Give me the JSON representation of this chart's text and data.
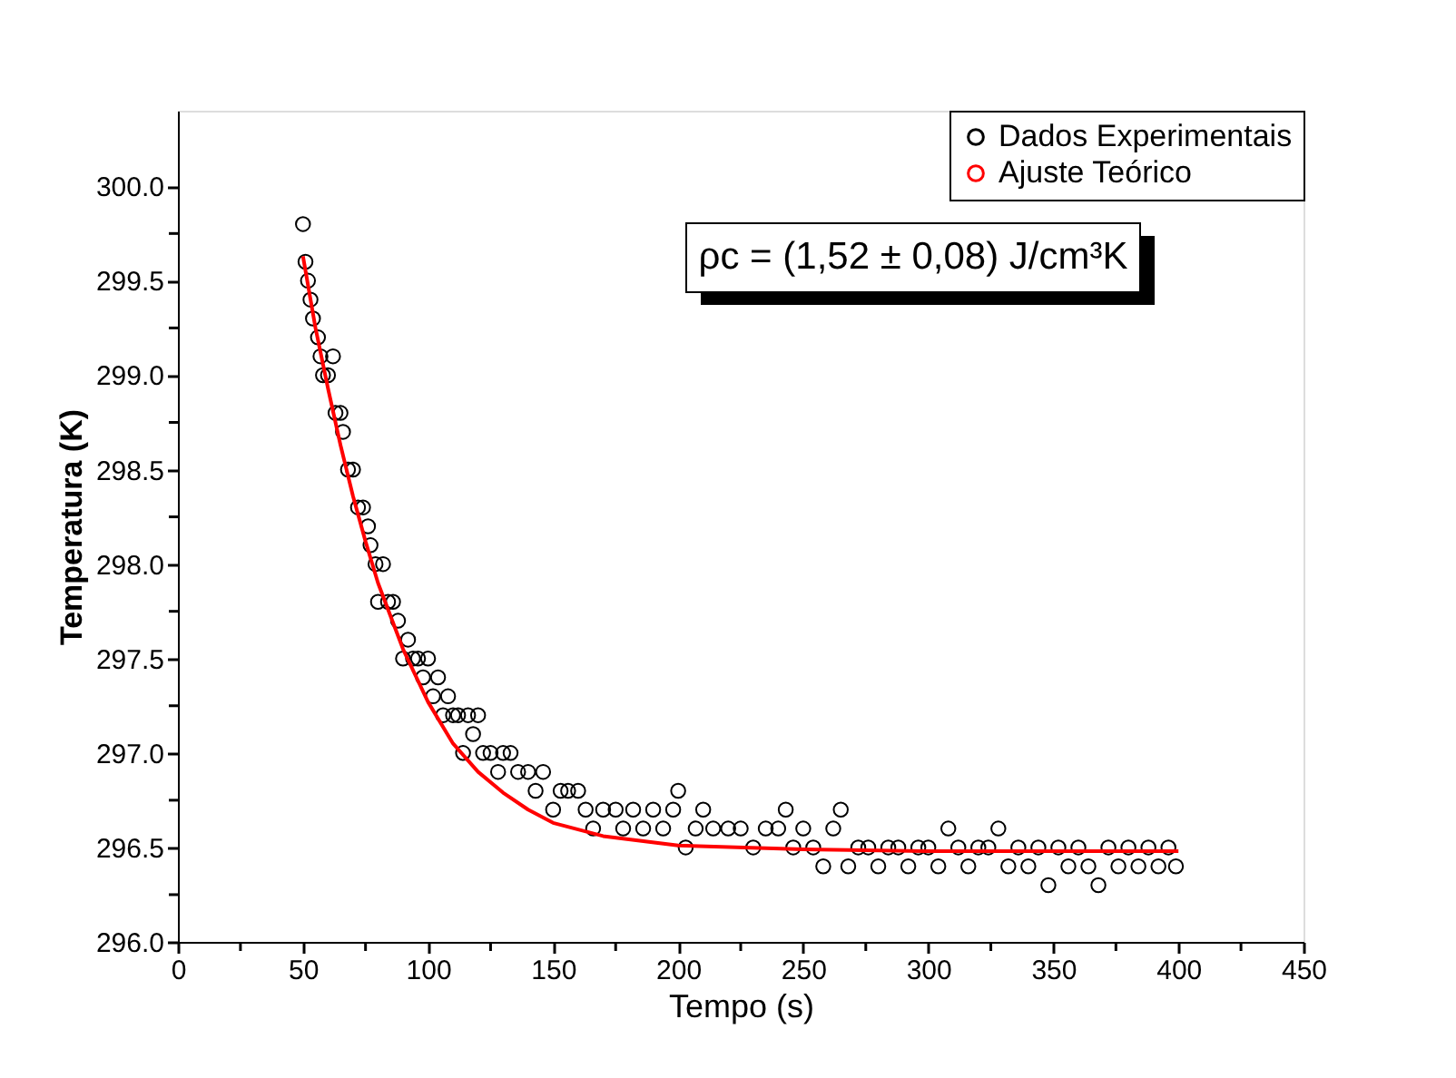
{
  "chart_data": {
    "type": "scatter",
    "xlabel": "Tempo (s)",
    "ylabel": "Temperatura (K)",
    "xlim": [
      0,
      450
    ],
    "ylim": [
      296,
      300.4
    ],
    "xticks": [
      0,
      {
        "value": 25,
        "label": null
      },
      50,
      {
        "value": 75,
        "label": null
      },
      100,
      {
        "value": 125,
        "label": null
      },
      150,
      {
        "value": 175,
        "label": null
      },
      200,
      {
        "value": 225,
        "label": null
      },
      250,
      {
        "value": 275,
        "label": null
      },
      300,
      {
        "value": 325,
        "label": null
      },
      350,
      {
        "value": 375,
        "label": null
      },
      400,
      {
        "value": 425,
        "label": null
      },
      450
    ],
    "yticks": [
      {
        "value": 296,
        "label": "296.0"
      },
      {
        "value": 296.25,
        "label": null
      },
      296.5,
      {
        "value": 296.75,
        "label": null
      },
      {
        "value": 297,
        "label": "297.0"
      },
      {
        "value": 297.25,
        "label": null
      },
      297.5,
      {
        "value": 297.75,
        "label": null
      },
      {
        "value": 298,
        "label": "298.0"
      },
      {
        "value": 298.25,
        "label": null
      },
      298.5,
      {
        "value": 298.75,
        "label": null
      },
      {
        "value": 299,
        "label": "299.0"
      },
      {
        "value": 299.25,
        "label": null
      },
      299.5,
      {
        "value": 299.75,
        "label": null
      },
      {
        "value": 300,
        "label": "300.0"
      }
    ],
    "grid": false,
    "legend": "top right",
    "annotations": [
      "ρc = (1,52 ± 0,08) J/cm³K"
    ],
    "series": [
      {
        "name": "Dados Experimentais",
        "type": "scatter",
        "marker": "circle",
        "color": "#000000",
        "x": [
          50,
          51,
          52,
          53,
          54,
          56,
          57,
          58,
          60,
          62,
          63,
          65,
          66,
          68,
          70,
          72,
          74,
          76,
          77,
          79,
          80,
          82,
          84,
          86,
          88,
          90,
          92,
          94,
          96,
          98,
          100,
          102,
          104,
          106,
          108,
          110,
          112,
          114,
          116,
          118,
          120,
          122,
          125,
          128,
          130,
          133,
          136,
          140,
          143,
          146,
          150,
          153,
          156,
          160,
          163,
          166,
          170,
          175,
          178,
          182,
          186,
          190,
          194,
          198,
          200,
          203,
          207,
          210,
          214,
          220,
          225,
          230,
          235,
          240,
          243,
          246,
          250,
          254,
          258,
          262,
          265,
          268,
          272,
          276,
          280,
          284,
          288,
          292,
          296,
          300,
          304,
          308,
          312,
          316,
          320,
          324,
          328,
          332,
          336,
          340,
          344,
          348,
          352,
          356,
          360,
          364,
          368,
          372,
          376,
          380,
          384,
          388,
          392,
          396,
          399
        ],
        "values": [
          299.8,
          299.6,
          299.5,
          299.4,
          299.3,
          299.2,
          299.1,
          299.0,
          299.0,
          299.1,
          298.8,
          298.8,
          298.7,
          298.5,
          298.5,
          298.3,
          298.3,
          298.2,
          298.1,
          298.0,
          297.8,
          298.0,
          297.8,
          297.8,
          297.7,
          297.5,
          297.6,
          297.5,
          297.5,
          297.4,
          297.5,
          297.3,
          297.4,
          297.2,
          297.3,
          297.2,
          297.2,
          297.0,
          297.2,
          297.1,
          297.2,
          297.0,
          297.0,
          296.9,
          297.0,
          297.0,
          296.9,
          296.9,
          296.8,
          296.9,
          296.7,
          296.8,
          296.8,
          296.8,
          296.7,
          296.6,
          296.7,
          296.7,
          296.6,
          296.7,
          296.6,
          296.7,
          296.6,
          296.7,
          296.8,
          296.5,
          296.6,
          296.7,
          296.6,
          296.6,
          296.6,
          296.5,
          296.6,
          296.6,
          296.7,
          296.5,
          296.6,
          296.5,
          296.4,
          296.6,
          296.7,
          296.4,
          296.5,
          296.5,
          296.4,
          296.5,
          296.5,
          296.4,
          296.5,
          296.5,
          296.4,
          296.6,
          296.5,
          296.4,
          296.5,
          296.5,
          296.6,
          296.4,
          296.5,
          296.4,
          296.5,
          296.3,
          296.5,
          296.4,
          296.5,
          296.4,
          296.3,
          296.5,
          296.4,
          296.5,
          296.4,
          296.5,
          296.4,
          296.5,
          296.4
        ]
      },
      {
        "name": "Ajuste Teórico",
        "type": "line",
        "line_style": "solid",
        "color": "#ff0000",
        "x": [
          50,
          55,
          60,
          65,
          70,
          75,
          80,
          90,
          100,
          110,
          120,
          130,
          140,
          150,
          170,
          200,
          250,
          300,
          400
        ],
        "values": [
          299.63,
          299.25,
          298.93,
          298.63,
          298.36,
          298.12,
          297.9,
          297.55,
          297.27,
          297.05,
          296.9,
          296.79,
          296.7,
          296.63,
          296.56,
          296.51,
          296.49,
          296.48,
          296.48
        ]
      }
    ]
  }
}
